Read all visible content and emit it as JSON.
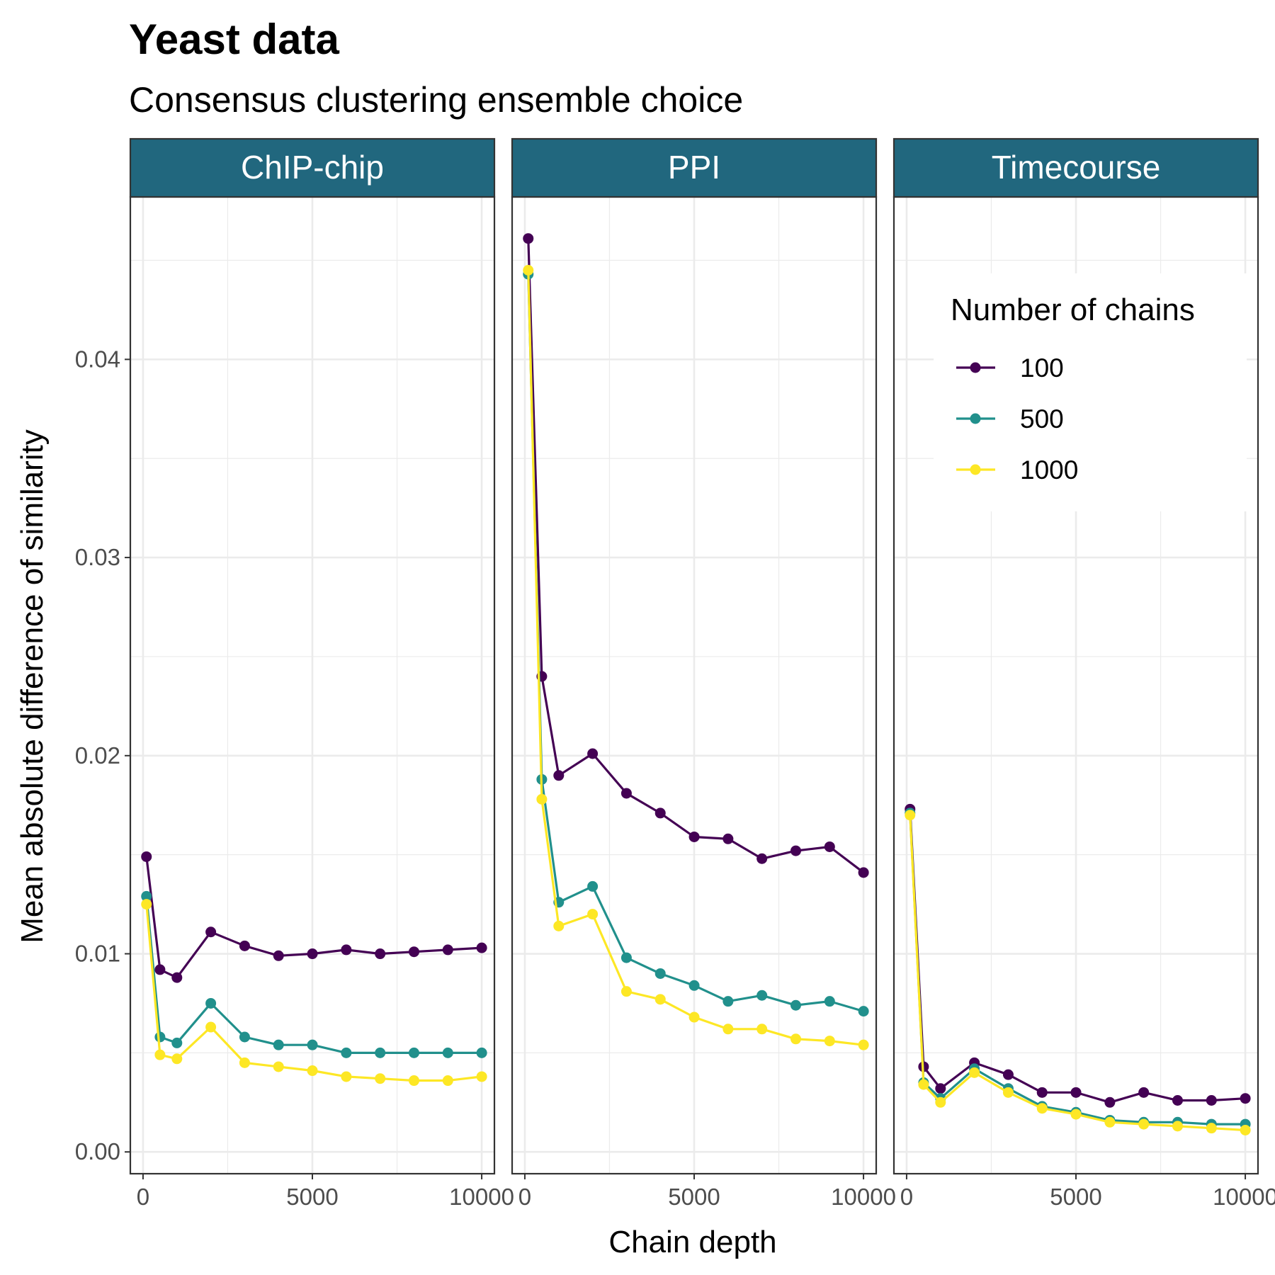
{
  "chart_data": {
    "type": "line",
    "title": "Yeast data",
    "subtitle": "Consensus clustering ensemble choice",
    "xlabel": "Chain depth",
    "ylabel": "Mean absolute difference of similarity",
    "xlim": [
      -375,
      10375
    ],
    "ylim": [
      -0.0011,
      0.0482
    ],
    "x_ticks": [
      0,
      5000,
      10000
    ],
    "x_tick_labels": [
      "0",
      "5000",
      "10000"
    ],
    "y_ticks": [
      0,
      0.01,
      0.02,
      0.03,
      0.04
    ],
    "y_tick_labels": [
      "0.00",
      "0.01",
      "0.02",
      "0.03",
      "0.04"
    ],
    "grid": true,
    "legend": {
      "title": "Number of chains",
      "position": "top-right",
      "entries": [
        "100",
        "500",
        "1000"
      ]
    },
    "colors": {
      "100": "#440154",
      "500": "#21908C",
      "1000": "#FDE725",
      "strip": "#21677e"
    },
    "x": [
      101,
      501,
      1001,
      2001,
      3001,
      4001,
      5001,
      6001,
      7001,
      8001,
      9001,
      10001
    ],
    "panels": [
      {
        "name": "ChIP-chip",
        "series": [
          {
            "name": "100",
            "values": [
              0.0149,
              0.0092,
              0.0088,
              0.0111,
              0.0104,
              0.0099,
              0.01,
              0.0102,
              0.01,
              0.0101,
              0.0102,
              0.0103
            ]
          },
          {
            "name": "500",
            "values": [
              0.0129,
              0.0058,
              0.0055,
              0.0075,
              0.0058,
              0.0054,
              0.0054,
              0.005,
              0.005,
              0.005,
              0.005,
              0.005
            ]
          },
          {
            "name": "1000",
            "values": [
              0.0125,
              0.0049,
              0.0047,
              0.0063,
              0.0045,
              0.0043,
              0.0041,
              0.0038,
              0.0037,
              0.0036,
              0.0036,
              0.0038
            ]
          }
        ]
      },
      {
        "name": "PPI",
        "series": [
          {
            "name": "100",
            "values": [
              0.0461,
              0.024,
              0.019,
              0.0201,
              0.0181,
              0.0171,
              0.0159,
              0.0158,
              0.0148,
              0.0152,
              0.0154,
              0.0141
            ]
          },
          {
            "name": "500",
            "values": [
              0.0443,
              0.0188,
              0.0126,
              0.0134,
              0.0098,
              0.009,
              0.0084,
              0.0076,
              0.0079,
              0.0074,
              0.0076,
              0.0071
            ]
          },
          {
            "name": "1000",
            "values": [
              0.0445,
              0.0178,
              0.0114,
              0.012,
              0.0081,
              0.0077,
              0.0068,
              0.0062,
              0.0062,
              0.0057,
              0.0056,
              0.0054
            ]
          }
        ]
      },
      {
        "name": "Timecourse",
        "series": [
          {
            "name": "100",
            "values": [
              0.0173,
              0.0043,
              0.0032,
              0.0045,
              0.0039,
              0.003,
              0.003,
              0.0025,
              0.003,
              0.0026,
              0.0026,
              0.0027
            ]
          },
          {
            "name": "500",
            "values": [
              0.0171,
              0.0035,
              0.0027,
              0.0042,
              0.0032,
              0.0023,
              0.002,
              0.0016,
              0.0015,
              0.0015,
              0.0014,
              0.0014
            ]
          },
          {
            "name": "1000",
            "values": [
              0.017,
              0.0034,
              0.0025,
              0.004,
              0.003,
              0.0022,
              0.0019,
              0.0015,
              0.0014,
              0.0013,
              0.0012,
              0.0011
            ]
          }
        ]
      }
    ]
  }
}
